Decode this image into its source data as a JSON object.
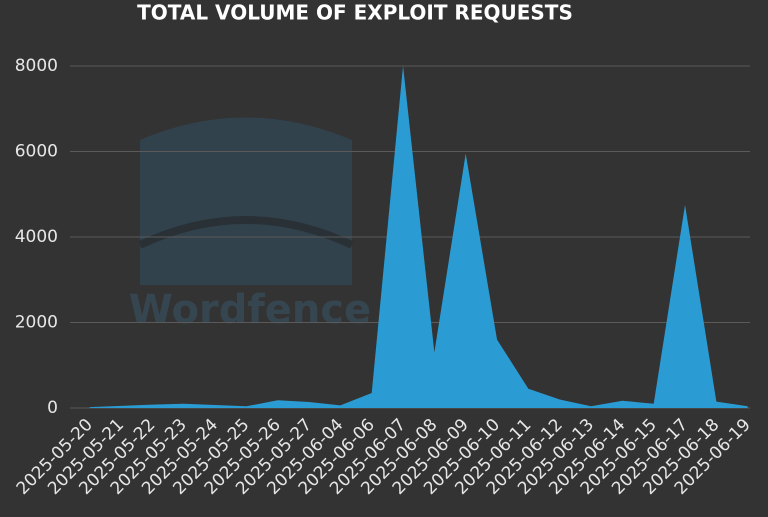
{
  "chart_data": {
    "type": "area",
    "title": "TOTAL VOLUME OF EXPLOIT REQUESTS",
    "watermark": "Wordfence",
    "categories": [
      "2025-05-20",
      "2025-05-21",
      "2025-05-22",
      "2025-05-23",
      "2025-05-24",
      "2025-05-25",
      "2025-05-26",
      "2025-05-27",
      "2025-06-04",
      "2025-06-06",
      "2025-06-07",
      "2025-06-08",
      "2025-06-09",
      "2025-06-10",
      "2025-06-11",
      "2025-06-12",
      "2025-06-13",
      "2025-06-14",
      "2025-06-15",
      "2025-06-17",
      "2025-06-18",
      "2025-06-19"
    ],
    "values": [
      20,
      50,
      80,
      100,
      70,
      40,
      180,
      140,
      60,
      350,
      8000,
      1300,
      5950,
      1600,
      450,
      200,
      40,
      170,
      100,
      4750,
      150,
      40
    ],
    "color": "#2b9cd3",
    "ylim": [
      0,
      8000
    ],
    "yticks": [
      0,
      2000,
      4000,
      6000,
      8000
    ],
    "grid": true
  }
}
